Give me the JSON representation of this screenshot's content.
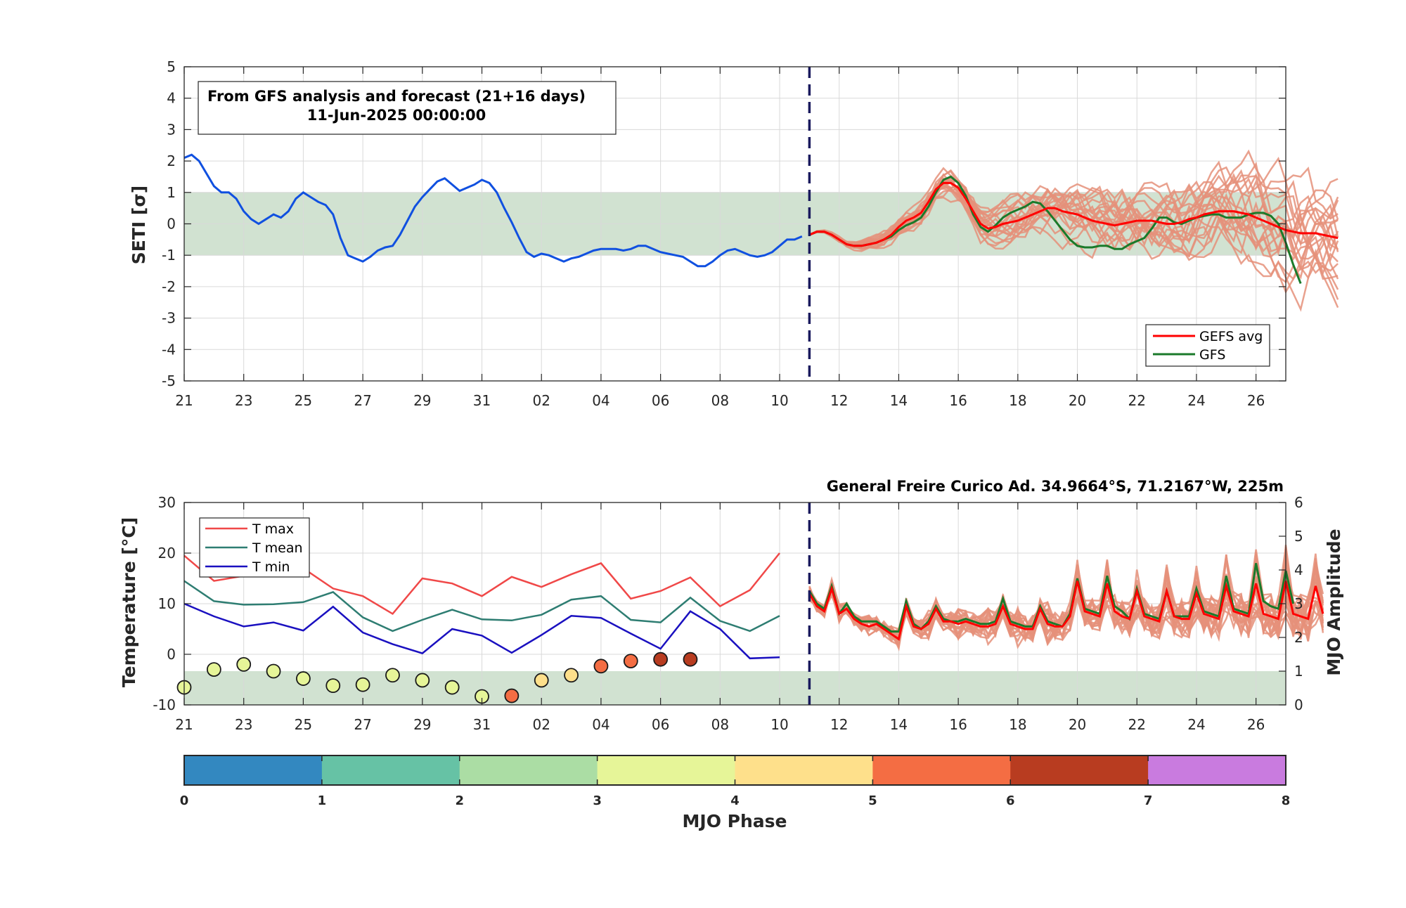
{
  "colors": {
    "analysis": "#1050E0",
    "gefs_avg": "#FF0000",
    "gfs": "#1A7A2A",
    "ensemble": "#E5917A",
    "band": "#B3CFB3",
    "tmax": "#F04848",
    "tmean": "#2E7D72",
    "tmin": "#1A10C0",
    "divider": "#1A1A5E"
  },
  "chart_data": [
    {
      "type": "line",
      "title_box": [
        "From GFS analysis and forecast (21+16 days)",
        "11-Jun-2025 00:00:00"
      ],
      "ylabel": "SETI [σ]",
      "ylim": [
        -5,
        5
      ],
      "yticks": [
        5,
        4,
        3,
        2,
        1,
        0,
        -1,
        -2,
        -3,
        -4,
        -5
      ],
      "xlim_day_index": [
        0,
        37
      ],
      "xtick_labels": [
        "21",
        "23",
        "25",
        "27",
        "29",
        "31",
        "02",
        "04",
        "06",
        "08",
        "10",
        "12",
        "14",
        "16",
        "18",
        "20",
        "22",
        "24",
        "26"
      ],
      "forecast_start_day_index": 21,
      "band": [
        -1,
        1
      ],
      "legend": [
        "GEFS avg",
        "GFS"
      ],
      "legend_position": "lower-right",
      "grid": true,
      "series": [
        {
          "key": "analysis",
          "day_index_step": 0.25,
          "start": 0,
          "values": [
            2.1,
            2.2,
            2.0,
            1.6,
            1.2,
            1.0,
            1.0,
            0.8,
            0.4,
            0.15,
            0.0,
            0.15,
            0.3,
            0.2,
            0.4,
            0.8,
            1.0,
            0.85,
            0.7,
            0.6,
            0.3,
            -0.45,
            -1.0,
            -1.1,
            -1.2,
            -1.05,
            -0.85,
            -0.75,
            -0.7,
            -0.35,
            0.1,
            0.55,
            0.85,
            1.1,
            1.35,
            1.45,
            1.25,
            1.05,
            1.15,
            1.25,
            1.4,
            1.3,
            1.0,
            0.5,
            0.05,
            -0.45,
            -0.9,
            -1.05,
            -0.95,
            -1.0,
            -1.1,
            -1.2,
            -1.1,
            -1.05,
            -0.95,
            -0.85,
            -0.8,
            -0.8,
            -0.8,
            -0.85,
            -0.8,
            -0.7,
            -0.7,
            -0.8,
            -0.9,
            -0.95,
            -1.0,
            -1.05,
            -1.2,
            -1.35,
            -1.35,
            -1.2,
            -1.0,
            -0.85,
            -0.8,
            -0.9,
            -1.0,
            -1.05,
            -1.0,
            -0.9,
            -0.7,
            -0.5,
            -0.5,
            -0.4
          ]
        },
        {
          "key": "gefs_avg",
          "day_index_step": 0.25,
          "start": 21,
          "values": [
            -0.35,
            -0.25,
            -0.25,
            -0.35,
            -0.5,
            -0.65,
            -0.7,
            -0.7,
            -0.65,
            -0.6,
            -0.5,
            -0.35,
            -0.1,
            0.1,
            0.2,
            0.35,
            0.7,
            1.1,
            1.3,
            1.3,
            1.15,
            0.8,
            0.4,
            0.0,
            -0.15,
            -0.1,
            0.0,
            0.05,
            0.1,
            0.2,
            0.3,
            0.4,
            0.5,
            0.5,
            0.4,
            0.35,
            0.3,
            0.2,
            0.1,
            0.05,
            0.0,
            -0.05,
            0.0,
            0.05,
            0.1,
            0.1,
            0.1,
            0.05,
            0.0,
            0.0,
            0.05,
            0.15,
            0.2,
            0.3,
            0.35,
            0.4,
            0.4,
            0.4,
            0.35,
            0.3,
            0.2,
            0.1,
            0.0,
            -0.1,
            -0.2,
            -0.25,
            -0.3,
            -0.3,
            -0.3,
            -0.35,
            -0.4,
            -0.45
          ]
        },
        {
          "key": "gfs",
          "day_index_step": 0.25,
          "start": 21,
          "values": [
            -0.35,
            -0.25,
            -0.25,
            -0.35,
            -0.5,
            -0.65,
            -0.7,
            -0.7,
            -0.65,
            -0.6,
            -0.5,
            -0.4,
            -0.2,
            -0.05,
            0.05,
            0.2,
            0.55,
            1.0,
            1.4,
            1.5,
            1.3,
            0.9,
            0.3,
            -0.1,
            -0.25,
            -0.05,
            0.2,
            0.35,
            0.45,
            0.55,
            0.7,
            0.65,
            0.4,
            0.1,
            -0.2,
            -0.5,
            -0.7,
            -0.75,
            -0.75,
            -0.7,
            -0.7,
            -0.8,
            -0.8,
            -0.65,
            -0.55,
            -0.45,
            -0.15,
            0.2,
            0.2,
            0.05,
            0.0,
            0.1,
            0.2,
            0.25,
            0.3,
            0.3,
            0.2,
            0.2,
            0.2,
            0.3,
            0.35,
            0.35,
            0.25,
            0.0,
            -0.6,
            -1.3,
            -1.9
          ]
        }
      ]
    },
    {
      "type": "line",
      "title": "General Freire Curico Ad. 34.9664°S, 71.2167°W, 225m",
      "ylabel": "Temperature [°C]",
      "y2label": "MJO Amplitude",
      "ylim": [
        -10,
        30
      ],
      "yticks": [
        30,
        20,
        10,
        0,
        -10
      ],
      "y2lim": [
        0,
        6
      ],
      "y2ticks": [
        6,
        5,
        4,
        3,
        2,
        1,
        0
      ],
      "xlim_day_index": [
        0,
        37
      ],
      "xtick_labels": [
        "21",
        "23",
        "25",
        "27",
        "29",
        "31",
        "02",
        "04",
        "06",
        "08",
        "10",
        "12",
        "14",
        "16",
        "18",
        "20",
        "22",
        "24",
        "26"
      ],
      "forecast_start_day_index": 21,
      "band_y2": [
        0,
        1
      ],
      "legend": [
        "T max",
        "T mean",
        "T min"
      ],
      "legend_position": "top-left",
      "grid": true,
      "series": [
        {
          "key": "tmax",
          "start": 0,
          "day_index_step": 1,
          "values": [
            19.5,
            14.5,
            15.5,
            15.5,
            17.0,
            13.0,
            11.5,
            8.0,
            15.0,
            14.0,
            11.5,
            15.3,
            13.3,
            15.8,
            18.0,
            11.0,
            12.5,
            15.2,
            9.5,
            12.7,
            20.0
          ]
        },
        {
          "key": "tmean",
          "start": 0,
          "day_index_step": 1,
          "values": [
            14.5,
            10.5,
            9.8,
            9.9,
            10.3,
            12.3,
            7.3,
            4.6,
            6.8,
            8.8,
            6.9,
            6.7,
            7.8,
            10.8,
            11.5,
            6.8,
            6.3,
            11.2,
            6.6,
            4.6,
            7.6
          ]
        },
        {
          "key": "tmin",
          "start": 0,
          "day_index_step": 1,
          "values": [
            10.0,
            7.5,
            5.5,
            6.3,
            4.7,
            9.4,
            4.3,
            2.0,
            0.2,
            5.0,
            3.7,
            0.3,
            3.8,
            7.6,
            7.2,
            4.1,
            1.1,
            8.5,
            5.0,
            -0.8,
            -0.6
          ]
        },
        {
          "key": "gefs_avg",
          "start": 21,
          "day_index_step": 0.25,
          "values": [
            12.0,
            9.5,
            8.5,
            13.0,
            8.0,
            9.0,
            7.0,
            6.0,
            5.5,
            6.0,
            5.0,
            4.0,
            3.0,
            9.5,
            5.5,
            5.0,
            6.0,
            9.0,
            6.5,
            6.5,
            6.0,
            6.5,
            6.0,
            5.5,
            5.5,
            6.0,
            9.5,
            6.0,
            5.5,
            5.0,
            5.0,
            9.0,
            6.0,
            5.5,
            5.5,
            7.5,
            14.5,
            8.5,
            8.0,
            7.5,
            14.0,
            8.5,
            7.5,
            7.0,
            12.5,
            7.5,
            7.0,
            6.5,
            12.5,
            7.5,
            7.0,
            7.0,
            12.0,
            8.0,
            7.5,
            7.0,
            13.5,
            8.5,
            8.0,
            7.5,
            14.0,
            8.0,
            7.5,
            7.0,
            14.5,
            8.0,
            7.5,
            7.0,
            13.5,
            8.0
          ]
        },
        {
          "key": "gfs",
          "start": 21,
          "day_index_step": 0.25,
          "values": [
            12.5,
            10.0,
            9.0,
            13.5,
            8.0,
            10.0,
            7.5,
            6.5,
            6.5,
            6.5,
            5.5,
            4.5,
            4.5,
            10.5,
            6.0,
            5.0,
            6.5,
            9.5,
            7.0,
            6.5,
            6.5,
            7.0,
            6.5,
            6.0,
            6.0,
            6.5,
            11.0,
            6.5,
            6.0,
            5.5,
            5.5,
            9.5,
            6.5,
            6.0,
            5.5,
            8.0,
            15.0,
            9.0,
            8.5,
            8.0,
            15.5,
            9.5,
            8.5,
            7.0,
            13.0,
            8.0,
            7.5,
            7.0,
            12.5,
            7.5,
            7.5,
            7.5,
            13.0,
            8.5,
            8.0,
            7.5,
            15.5,
            9.0,
            8.5,
            8.0,
            18.0,
            10.5,
            9.5,
            9.0,
            16.5,
            10.0
          ]
        }
      ],
      "mjo_points": {
        "day_index": [
          0,
          1,
          2,
          3,
          4,
          5,
          6,
          7,
          8,
          9,
          10,
          11,
          12,
          13,
          14,
          15,
          16,
          17
        ],
        "amplitude": [
          0.52,
          1.05,
          1.2,
          1.0,
          0.78,
          0.57,
          0.6,
          0.88,
          0.73,
          0.52,
          0.25,
          0.27,
          0.73,
          0.88,
          1.15,
          1.3,
          1.35,
          1.35
        ],
        "phase": [
          3.5,
          3.5,
          3.5,
          3.5,
          3.5,
          3.5,
          3.5,
          3.5,
          3.5,
          3.5,
          3.5,
          5.5,
          4.5,
          4.5,
          5.5,
          5.5,
          6.5,
          6.5
        ]
      }
    },
    {
      "type": "colorbar",
      "xlabel": "MJO Phase",
      "tick_labels": [
        "0",
        "1",
        "2",
        "3",
        "4",
        "5",
        "6",
        "7",
        "8"
      ],
      "segment_colors": [
        "#3388C0",
        "#66C2A5",
        "#ABDDA4",
        "#E6F598",
        "#FEE08B",
        "#F46D43",
        "#B83C20",
        "#C97BDF"
      ]
    }
  ]
}
